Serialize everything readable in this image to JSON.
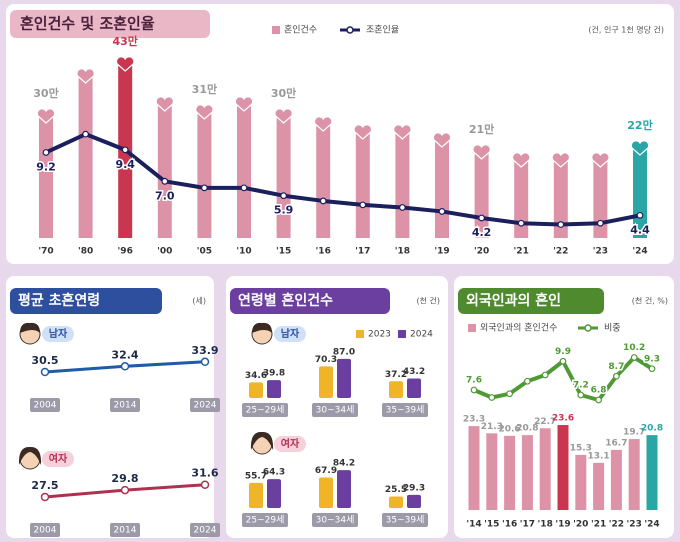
{
  "chart_data": [
    {
      "type": "combo",
      "title": "혼인건수 및 조혼인율",
      "unit": "(건, 인구 1천 명당 건)",
      "categories": [
        "'70",
        "'80",
        "'96",
        "'00",
        "'05",
        "'10",
        "'15",
        "'16",
        "'17",
        "'18",
        "'19",
        "'20",
        "'21",
        "'22",
        "'23",
        "'24"
      ],
      "series": [
        {
          "name": "혼인건수",
          "color": "#dc93a8",
          "colors": [
            "#dc93a8",
            "#dc93a8",
            "#c8374f",
            "#dc93a8",
            "#dc93a8",
            "#dc93a8",
            "#dc93a8",
            "#dc93a8",
            "#dc93a8",
            "#dc93a8",
            "#dc93a8",
            "#dc93a8",
            "#dc93a8",
            "#dc93a8",
            "#dc93a8",
            "#2ba6a6"
          ],
          "values": [
            30,
            40,
            43,
            33,
            31,
            33,
            30,
            28,
            26,
            26,
            24,
            21,
            19,
            19,
            19,
            22
          ],
          "value_labels": [
            "30만",
            null,
            "43만",
            null,
            "31만",
            null,
            "30만",
            null,
            null,
            null,
            null,
            "21만",
            null,
            null,
            null,
            "22만"
          ]
        },
        {
          "name": "조혼인율",
          "color": "#1b1f5c",
          "values": [
            9.2,
            10.6,
            9.4,
            7.0,
            6.5,
            6.5,
            5.9,
            5.5,
            5.2,
            5.0,
            4.7,
            4.2,
            3.8,
            3.7,
            3.8,
            4.4
          ],
          "value_labels": [
            "9.2",
            null,
            "9.4",
            "7.0",
            null,
            null,
            "5.9",
            null,
            null,
            null,
            null,
            "4.2",
            null,
            null,
            null,
            "4.4"
          ]
        }
      ]
    },
    {
      "type": "line",
      "title": "평균 초혼연령",
      "unit": "(세)",
      "categories": [
        "2004",
        "2014",
        "2024"
      ],
      "series": [
        {
          "name": "남자",
          "color": "#1f5ca8",
          "values": [
            30.5,
            32.4,
            33.9
          ]
        },
        {
          "name": "여자",
          "color": "#b03050",
          "values": [
            27.5,
            29.8,
            31.6
          ]
        }
      ]
    },
    {
      "type": "bar",
      "title": "연령별 혼인건수",
      "unit": "(천 건)",
      "groups": [
        "남자",
        "여자"
      ],
      "categories": [
        "25~29세",
        "30~34세",
        "35~39세"
      ],
      "series": [
        {
          "name": "2023",
          "color": "#f0b429",
          "values": [
            [
              34.6,
              70.3,
              37.2
            ],
            [
              55.7,
              67.9,
              25.5
            ]
          ],
          "value_labels": [
            [
              "34.6",
              "70.3",
              "37.2"
            ],
            [
              "55.7",
              "67.9",
              "25.5"
            ]
          ]
        },
        {
          "name": "2024",
          "color": "#6a3fa0",
          "values": [
            [
              39.8,
              87.0,
              43.2
            ],
            [
              64.3,
              84.2,
              29.3
            ]
          ],
          "value_labels": [
            [
              "39.8",
              "87.0",
              "43.2"
            ],
            [
              "64.3",
              "84.2",
              "29.3"
            ]
          ]
        }
      ]
    },
    {
      "type": "combo",
      "title": "외국인과의 혼인",
      "unit": "(천 건, %)",
      "categories": [
        "'14",
        "'15",
        "'16",
        "'17",
        "'18",
        "'19",
        "'20",
        "'21",
        "'22",
        "'23",
        "'24"
      ],
      "series": [
        {
          "name": "외국인과의 혼인건수",
          "color": "#dc93a8",
          "colors": [
            "#dc93a8",
            "#dc93a8",
            "#dc93a8",
            "#dc93a8",
            "#dc93a8",
            "#c8374f",
            "#dc93a8",
            "#dc93a8",
            "#dc93a8",
            "#dc93a8",
            "#2ba6a6"
          ],
          "values": [
            23.3,
            21.3,
            20.6,
            20.8,
            22.7,
            23.6,
            15.3,
            13.1,
            16.7,
            19.7,
            20.8
          ]
        },
        {
          "name": "비중",
          "color": "#4f9a35",
          "values": [
            7.6,
            7.0,
            7.3,
            8.3,
            8.8,
            9.9,
            7.2,
            6.8,
            8.7,
            10.2,
            9.3
          ],
          "value_labels": [
            "7.6",
            null,
            null,
            null,
            null,
            "9.9",
            "7.2",
            "6.8",
            "8.7",
            "10.2",
            "9.3"
          ]
        }
      ]
    }
  ]
}
